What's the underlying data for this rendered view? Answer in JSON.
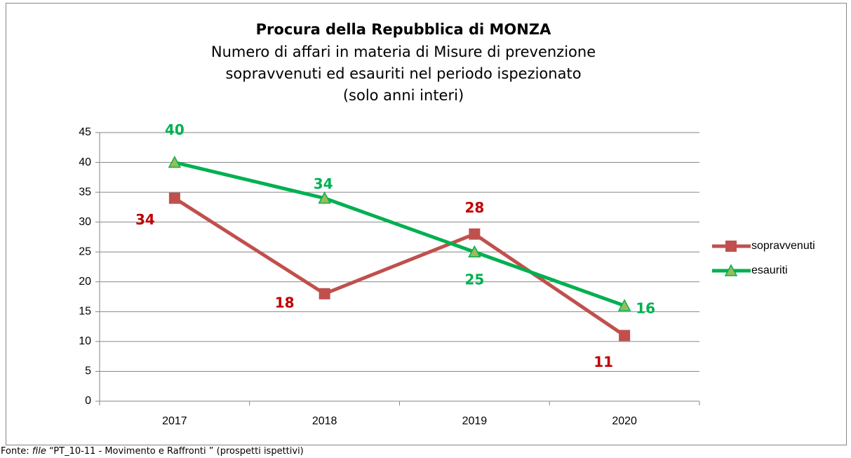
{
  "chart_data": {
    "type": "line",
    "title": "Procura della Repubblica di MONZA",
    "subtitle": [
      "Numero di affari in materia di Misure di prevenzione",
      "sopravvenuti ed esauriti nel periodo ispezionato",
      "(solo anni interi)"
    ],
    "categories": [
      "2017",
      "2018",
      "2019",
      "2020"
    ],
    "series": [
      {
        "name": "sopravvenuti",
        "color": "#c0504d",
        "label_color": "#c00000",
        "marker": "square",
        "values": [
          34,
          18,
          28,
          11
        ]
      },
      {
        "name": "esauriti",
        "color": "#00b050",
        "marker_color": "#9bbb59",
        "label_color": "#00b050",
        "marker": "triangle",
        "values": [
          40,
          34,
          25,
          16
        ]
      }
    ],
    "ylim": [
      0,
      45
    ],
    "yticks": [
      0,
      5,
      10,
      15,
      20,
      25,
      30,
      35,
      40,
      45
    ],
    "grid": true,
    "legend": "right",
    "source": [
      "Fonte: ",
      "file",
      " “PT_10-11 - Movimento e Raffronti ” (prospetti ispettivi)"
    ]
  }
}
